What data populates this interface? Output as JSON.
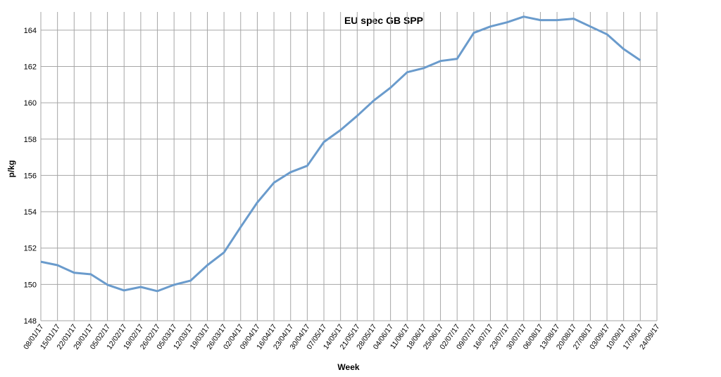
{
  "chart_data": {
    "type": "line",
    "title": "EU spec GB SPP",
    "xlabel": "Week",
    "ylabel": "p/kg",
    "categories": [
      "08/01/17",
      "15/01/17",
      "22/01/17",
      "29/01/17",
      "05/02/17",
      "12/02/17",
      "19/02/17",
      "26/02/17",
      "05/03/17",
      "12/03/17",
      "19/03/17",
      "26/03/17",
      "02/04/17",
      "09/04/17",
      "16/04/17",
      "23/04/17",
      "30/04/17",
      "07/05/17",
      "14/05/17",
      "21/05/17",
      "28/05/17",
      "04/06/17",
      "11/06/17",
      "18/06/17",
      "25/06/17",
      "02/07/17",
      "09/07/17",
      "16/07/17",
      "23/07/17",
      "30/07/17",
      "06/08/17",
      "13/08/17",
      "20/08/17",
      "27/08/17",
      "03/09/17",
      "10/09/17",
      "17/09/17",
      "24/09/17"
    ],
    "series": [
      {
        "name": "EU spec GB SPP",
        "color": "#6a9bcc",
        "values": [
          151.25,
          151.06,
          150.64,
          150.56,
          149.98,
          149.67,
          149.86,
          149.63,
          149.98,
          150.21,
          151.06,
          151.76,
          153.16,
          154.51,
          155.6,
          156.18,
          156.53,
          157.84,
          158.5,
          159.28,
          160.13,
          160.83,
          161.68,
          161.91,
          162.3,
          162.42,
          163.85,
          164.2,
          164.43,
          164.74,
          164.55,
          164.55,
          164.63,
          164.2,
          163.77,
          162.96,
          162.34,
          null
        ]
      }
    ],
    "ylim": [
      148,
      165
    ],
    "yticks": [
      148,
      150,
      152,
      154,
      156,
      158,
      160,
      162,
      164
    ],
    "grid": true
  }
}
